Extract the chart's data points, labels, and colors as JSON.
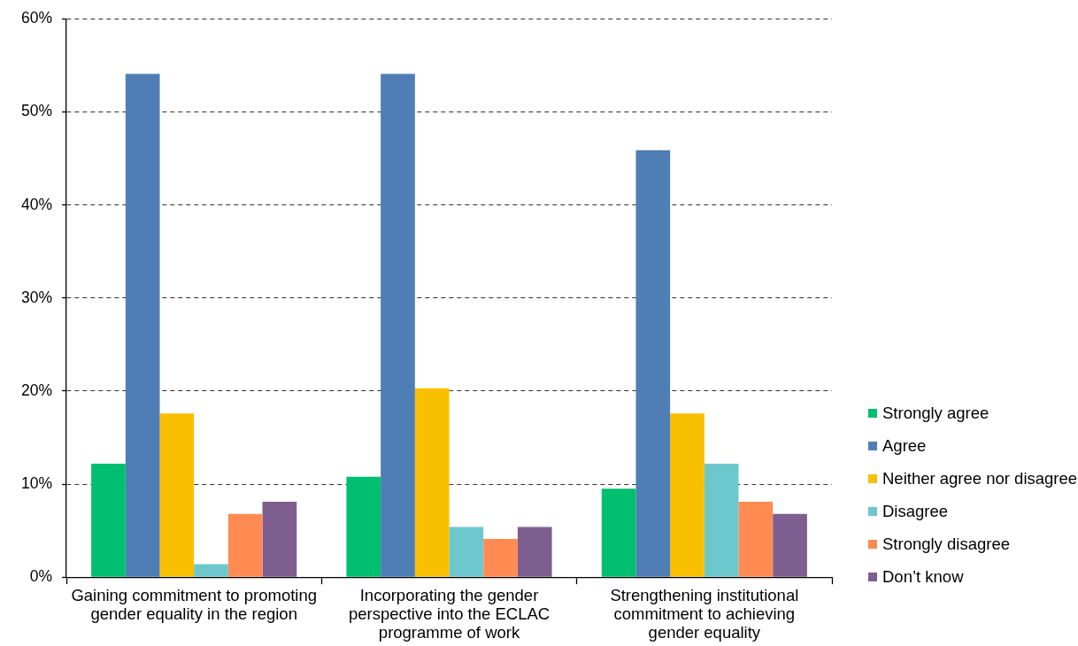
{
  "chart_data": {
    "type": "bar",
    "categories": [
      "Gaining commitment to promoting gender equality in the region",
      "Incorporating the gender perspective into the ECLAC programme of work",
      "Strengthening institutional commitment to achieving gender equality"
    ],
    "series": [
      {
        "name": "Strongly agree",
        "color": "#00bf6f",
        "values": [
          12.2,
          10.8,
          9.5
        ]
      },
      {
        "name": "Agree",
        "color": "#4f7db6",
        "values": [
          54.1,
          54.1,
          45.9
        ]
      },
      {
        "name": "Neither agree nor disagree",
        "color": "#f8bf00",
        "values": [
          17.6,
          20.3,
          17.6
        ]
      },
      {
        "name": "Disagree",
        "color": "#6cc8cc",
        "values": [
          1.4,
          5.4,
          12.2
        ]
      },
      {
        "name": "Strongly disagree",
        "color": "#ff8b52",
        "values": [
          6.8,
          4.1,
          8.1
        ]
      },
      {
        "name": "Don’t know",
        "color": "#7e5e8e",
        "values": [
          8.1,
          5.4,
          6.8
        ]
      }
    ],
    "ylim": [
      0,
      60
    ],
    "yticks": [
      {
        "value": 0,
        "label": "0%"
      },
      {
        "value": 10,
        "label": "10%"
      },
      {
        "value": 20,
        "label": "20%"
      },
      {
        "value": 30,
        "label": "30%"
      },
      {
        "value": 40,
        "label": "40%"
      },
      {
        "value": 50,
        "label": "50%"
      },
      {
        "value": 60,
        "label": "60%"
      }
    ],
    "grid": "y",
    "legend": "right"
  }
}
